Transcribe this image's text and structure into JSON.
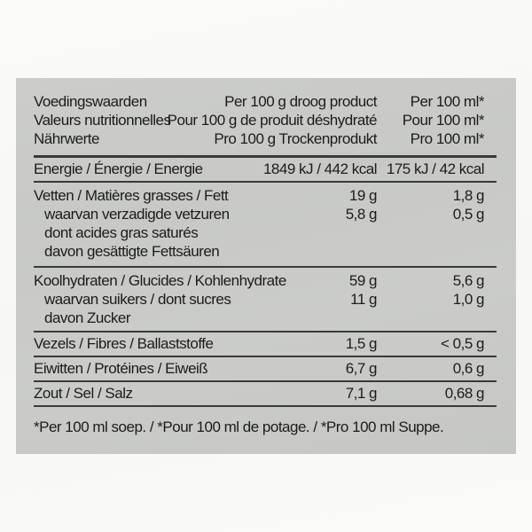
{
  "colors": {
    "page_background": "#f8f8f6",
    "panel_background": "#c9cac8",
    "text": "#1c1c1a",
    "rule": "#3a3a36"
  },
  "table": {
    "header": {
      "column1": [
        "Voedingswaarden",
        "Valeurs nutritionnelles",
        "Nährwerte"
      ],
      "column2": [
        "Per 100 g droog product",
        "Pour 100 g de produit déshydraté",
        "Pro 100 g Trockenprodukt"
      ],
      "column3": [
        "Per 100 ml*",
        "Pour 100 ml*",
        "Pro 100 ml*"
      ]
    },
    "sections": [
      {
        "id": "energy",
        "lines": [
          {
            "label": "Energie / Énergie / Energie",
            "per100g": "1849 kJ / 442 kcal",
            "per100ml": "175 kJ / 42 kcal"
          }
        ]
      },
      {
        "id": "fat",
        "lines": [
          {
            "label": "Vetten / Matières grasses / Fett",
            "per100g": "19 g",
            "per100ml": "1,8 g"
          },
          {
            "label": "waarvan verzadigde vetzuren",
            "per100g": "5,8 g",
            "per100ml": "0,5 g"
          },
          {
            "label": "dont acides gras saturés"
          },
          {
            "label": "davon gesättigte Fettsäuren"
          }
        ]
      },
      {
        "id": "carbohydrate",
        "lines": [
          {
            "label": "Koolhydraten / Glucides / Kohlenhydrate",
            "per100g": "59 g",
            "per100ml": "5,6 g"
          },
          {
            "label": "waarvan suikers / dont sucres",
            "per100g": "11 g",
            "per100ml": "1,0 g"
          },
          {
            "label": "davon Zucker"
          }
        ]
      },
      {
        "id": "fibre",
        "lines": [
          {
            "label": "Vezels / Fibres / Ballaststoffe",
            "per100g": "1,5 g",
            "per100ml": "< 0,5 g"
          }
        ]
      },
      {
        "id": "protein",
        "lines": [
          {
            "label": "Eiwitten / Protéines / Eiweiß",
            "per100g": "6,7 g",
            "per100ml": "0,6 g"
          }
        ]
      },
      {
        "id": "salt",
        "lines": [
          {
            "label": "Zout / Sel / Salz",
            "per100g": "7,1 g",
            "per100ml": "0,68 g"
          }
        ]
      }
    ],
    "footnote": "*Per 100 ml soep. / *Pour 100 ml de potage. / *Pro 100 ml Suppe."
  }
}
